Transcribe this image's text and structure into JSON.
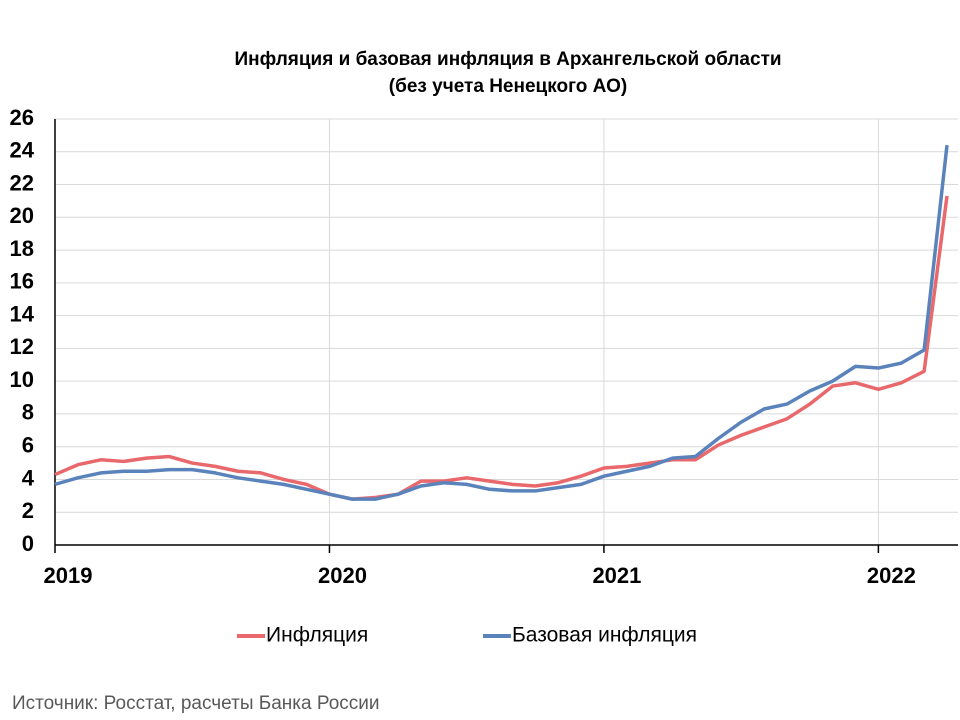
{
  "chart_data": {
    "type": "line",
    "title": "Инфляция и базовая инфляция в Архангельской области (без учета Ненецкого АО)",
    "categories": [
      "2019",
      null,
      null,
      null,
      null,
      null,
      null,
      null,
      null,
      null,
      null,
      null,
      "2020",
      null,
      null,
      null,
      null,
      null,
      null,
      null,
      null,
      null,
      null,
      null,
      "2021",
      null,
      null,
      null,
      null,
      null,
      null,
      null,
      null,
      null,
      null,
      null,
      "2022",
      null,
      null,
      null
    ],
    "series": [
      {
        "name": "Инфляция",
        "color": "#e8686c",
        "values": [
          4.3,
          4.9,
          5.2,
          5.1,
          5.3,
          5.4,
          5.0,
          4.8,
          4.5,
          4.4,
          4.0,
          3.7,
          3.1,
          2.8,
          2.9,
          3.1,
          3.9,
          3.9,
          4.1,
          3.9,
          3.7,
          3.6,
          3.8,
          4.2,
          4.7,
          4.8,
          5.0,
          5.2,
          5.2,
          6.1,
          6.7,
          7.2,
          7.7,
          8.6,
          9.7,
          9.9,
          9.5,
          9.9,
          10.6,
          21.3
        ]
      },
      {
        "name": "Базовая инфляция",
        "color": "#5b83bb",
        "values": [
          3.7,
          4.1,
          4.4,
          4.5,
          4.5,
          4.6,
          4.6,
          4.4,
          4.1,
          3.9,
          3.7,
          3.4,
          3.1,
          2.8,
          2.8,
          3.1,
          3.6,
          3.8,
          3.7,
          3.4,
          3.3,
          3.3,
          3.5,
          3.7,
          4.2,
          4.5,
          4.8,
          5.3,
          5.4,
          6.5,
          7.5,
          8.3,
          8.6,
          9.4,
          10.0,
          10.9,
          10.8,
          11.1,
          11.9,
          24.4
        ]
      }
    ],
    "ylim": [
      0,
      26
    ],
    "yticks": [
      0,
      2,
      4,
      6,
      8,
      10,
      12,
      14,
      16,
      18,
      20,
      22,
      24,
      26
    ],
    "grid": true,
    "legend": "bottom",
    "source": "Источник: Росстат, расчеты Банка России"
  }
}
